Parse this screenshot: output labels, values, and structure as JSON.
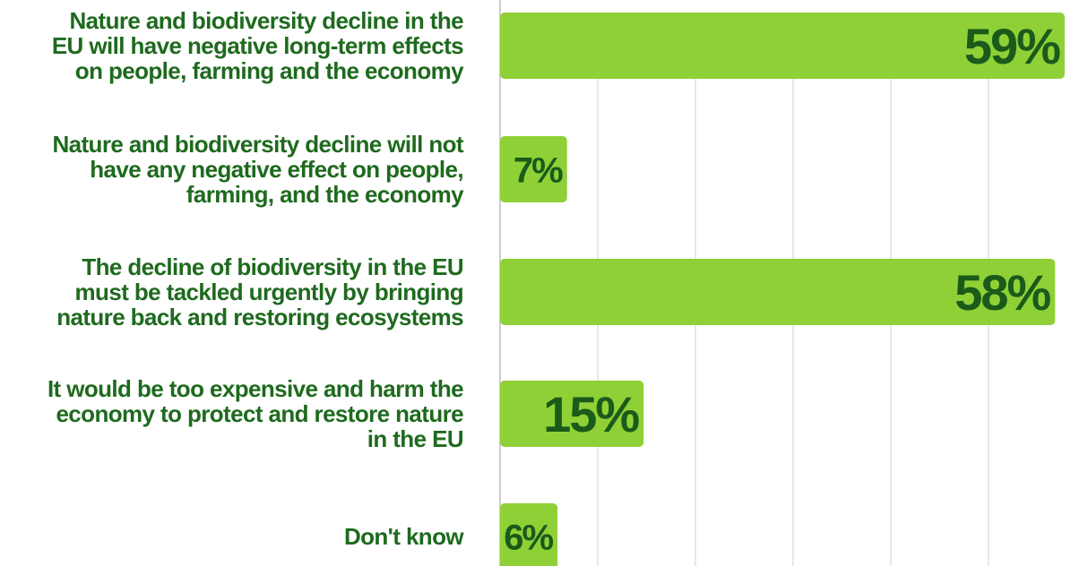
{
  "chart_data": {
    "type": "bar",
    "orientation": "horizontal",
    "categories": [
      [
        "Nature and biodiversity decline in the",
        "EU will have negative long-term effects",
        "on people, farming and the economy"
      ],
      [
        "Nature and biodiversity decline will not",
        "have any negative effect on people,",
        "farming, and the economy"
      ],
      [
        "The decline of biodiversity in the EU",
        "must be tackled urgently by bringing",
        "nature back and restoring ecosystems"
      ],
      [
        "It would be too expensive and harm the",
        "economy to protect and restore nature",
        "in the EU"
      ],
      [
        "Don't know"
      ]
    ],
    "values": [
      59,
      7,
      58,
      15,
      6
    ],
    "value_labels": [
      "59%",
      "7%",
      "58%",
      "15%",
      "6%"
    ],
    "xlim": [
      0,
      59
    ],
    "grid": true,
    "legend": "none"
  },
  "colors": {
    "bar": "#8FD036",
    "value_text": "#1A5A1A",
    "category_text": "#1E6A1E",
    "gridline": "#D9D9D9",
    "axis": "#BDBDBD"
  }
}
